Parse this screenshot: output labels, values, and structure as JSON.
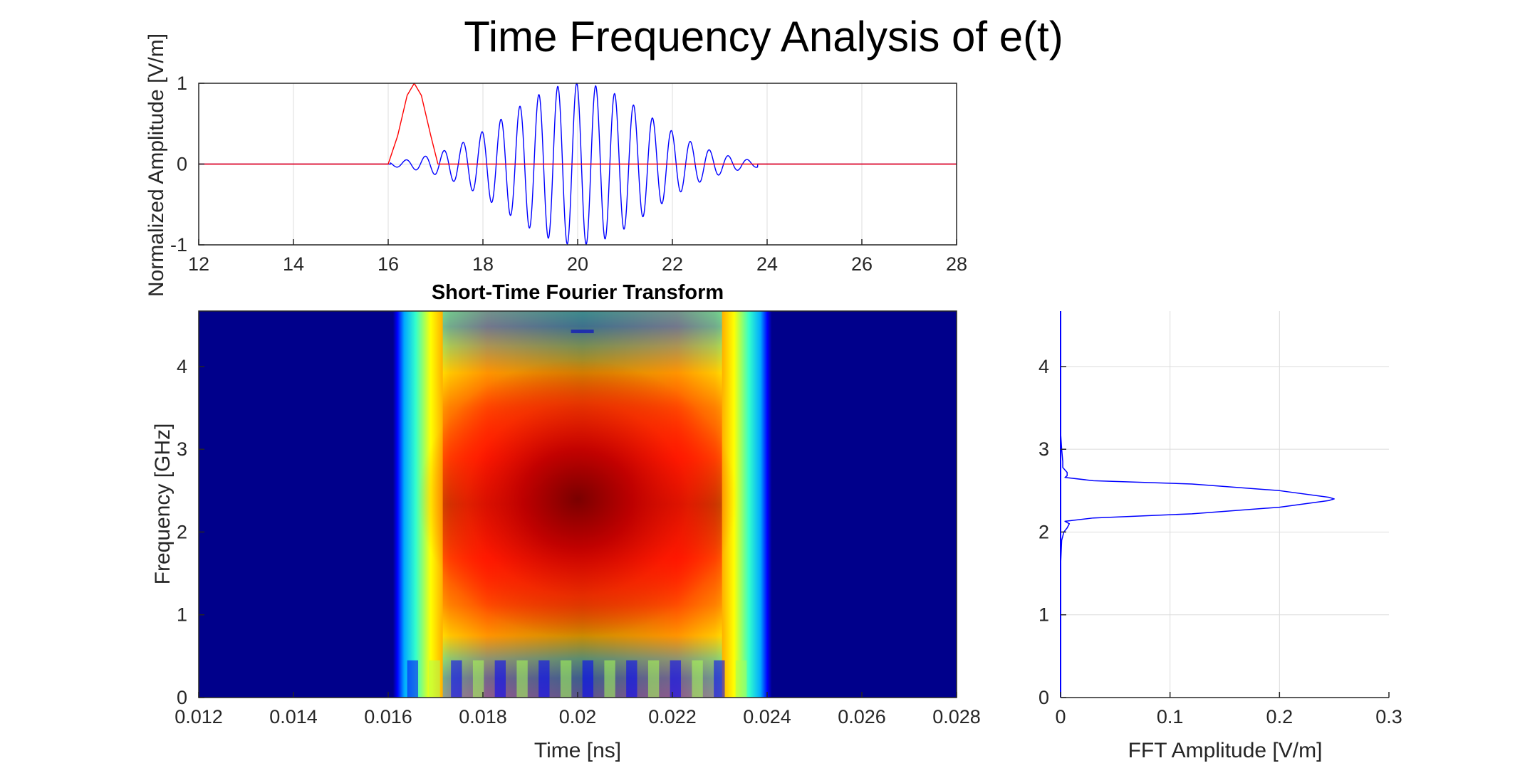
{
  "figure": {
    "title": "Time Frequency Analysis of e(t)"
  },
  "chart_data": [
    {
      "id": "time-signal",
      "type": "line",
      "title": "",
      "xlabel": "",
      "ylabel": "Normalized Amplitude [V/m]",
      "xlim": [
        12,
        28
      ],
      "ylim": [
        -1,
        1
      ],
      "xticks": [
        "12",
        "14",
        "16",
        "18",
        "20",
        "22",
        "24",
        "26",
        "28"
      ],
      "yticks": [
        "-1",
        "0",
        "1"
      ],
      "grid": true,
      "series": [
        {
          "color": "#0000ff",
          "style": "wave-packet",
          "t_start": 16.05,
          "t_end": 23.8,
          "center": 20.0,
          "peak_amplitude": 1.0,
          "carrier_period": 0.4
        },
        {
          "color": "#ff0000",
          "style": "gaussian-window",
          "x": [
            12,
            16.0,
            16.2,
            16.4,
            16.55,
            16.7,
            16.9,
            17.05,
            17.2,
            28
          ],
          "y": [
            0,
            0,
            0.35,
            0.85,
            1.0,
            0.85,
            0.35,
            0.0,
            0,
            0
          ]
        }
      ]
    },
    {
      "id": "stft",
      "type": "heatmap",
      "title": "Short-Time Fourier Transform",
      "xlabel": "Time [ns]",
      "ylabel": "Frequency [GHz]",
      "xlim": [
        0.012,
        0.028
      ],
      "ylim": [
        0,
        4.67
      ],
      "xticks": [
        "0.012",
        "0.014",
        "0.016",
        "0.018",
        "0.02",
        "0.022",
        "0.024",
        "0.026",
        "0.028"
      ],
      "yticks": [
        "0",
        "1",
        "2",
        "3",
        "4"
      ],
      "colormap": "jet",
      "energy_region": {
        "t_start": 0.0161,
        "t_end": 0.0241,
        "peak_time": 0.02,
        "peak_frequency": 2.4
      }
    },
    {
      "id": "fft",
      "type": "line",
      "title": "",
      "xlabel": "FFT Amplitude [V/m]",
      "ylabel": "",
      "xlim": [
        0,
        0.3
      ],
      "ylim": [
        0,
        4.67
      ],
      "xticks": [
        "0",
        "0.1",
        "0.2",
        "0.3"
      ],
      "yticks": [
        "0",
        "1",
        "2",
        "3",
        "4"
      ],
      "grid": true,
      "series": [
        {
          "color": "#0000ff",
          "frequency": [
            0,
            1.6,
            1.9,
            2.0,
            2.05,
            2.1,
            2.13,
            2.17,
            2.22,
            2.3,
            2.38,
            2.4,
            2.42,
            2.5,
            2.58,
            2.62,
            2.66,
            2.68,
            2.72,
            2.78,
            2.85,
            3.0,
            3.2,
            4.67
          ],
          "amplitude": [
            0,
            0.0,
            0.001,
            0.003,
            0.006,
            0.008,
            0.004,
            0.03,
            0.12,
            0.2,
            0.245,
            0.25,
            0.245,
            0.2,
            0.12,
            0.03,
            0.004,
            0.006,
            0.006,
            0.002,
            0.002,
            0.001,
            0.0,
            0
          ]
        }
      ]
    }
  ]
}
